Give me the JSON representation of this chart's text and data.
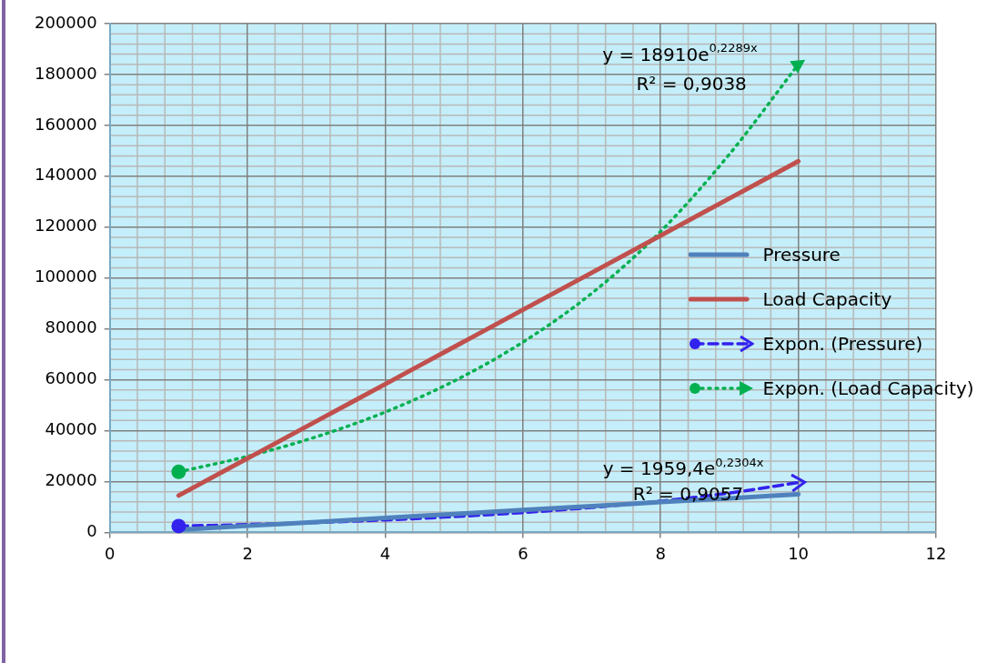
{
  "chart_data": {
    "type": "line",
    "x": [
      1,
      2,
      3,
      4,
      5,
      6,
      7,
      8,
      9,
      10
    ],
    "series": [
      {
        "name": "Pressure",
        "color": "#4f81bd",
        "values": [
          1000,
          2600,
          4100,
          5700,
          7200,
          8800,
          10300,
          11900,
          13400,
          15000
        ]
      },
      {
        "name": "Load Capacity",
        "color": "#c0504d",
        "values": [
          14500,
          29100,
          43700,
          58300,
          72900,
          87500,
          102100,
          116700,
          131300,
          145900
        ]
      },
      {
        "name": "Expon. (Pressure)",
        "color": "#3322ee",
        "line_style": "dashed",
        "values": [
          2500,
          3100,
          3900,
          4900,
          6200,
          7800,
          9800,
          12300,
          15500,
          19600
        ]
      },
      {
        "name": "Expon. (Load Capacity)",
        "color": "#00b050",
        "line_style": "dotted",
        "values": [
          23800,
          29900,
          37600,
          47300,
          59500,
          74800,
          94000,
          118300,
          148700,
          184000
        ]
      }
    ],
    "xlim": [
      0,
      12
    ],
    "xticks": [
      0,
      2,
      4,
      6,
      8,
      10,
      12
    ],
    "ylim": [
      0,
      200000
    ],
    "yticks": [
      0,
      20000,
      40000,
      60000,
      80000,
      100000,
      120000,
      140000,
      160000,
      180000,
      200000
    ],
    "grid": true,
    "legend": "right",
    "annotations": [
      "y = 18910e$^{0,2289x}$",
      "R² = 0,9038",
      "y = 1959,4e$^{0,2304x}$",
      "R² = 0,9057"
    ]
  }
}
